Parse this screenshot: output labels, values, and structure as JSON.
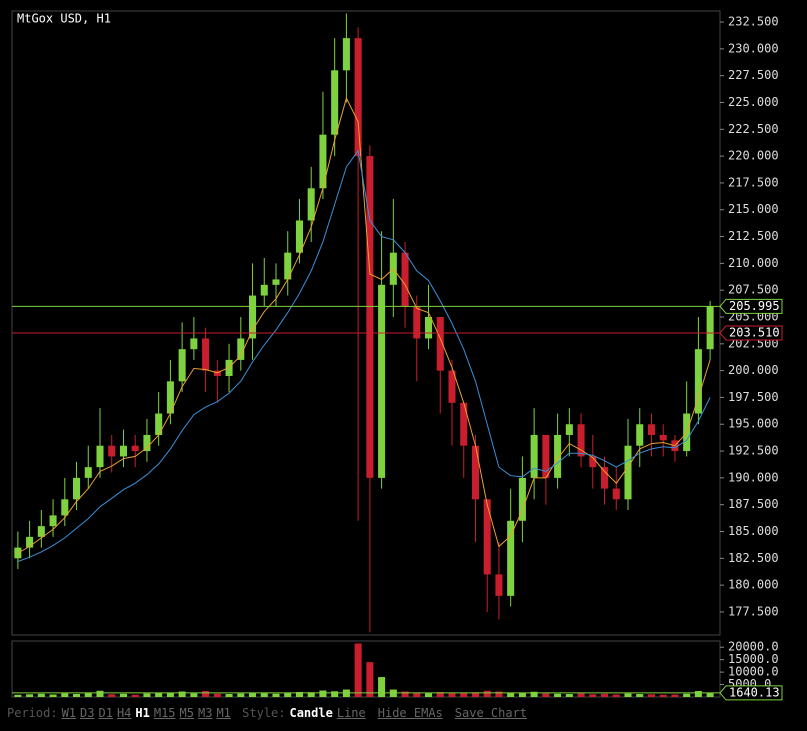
{
  "chart_data": {
    "type": "candlestick",
    "title": "MtGox USD, H1",
    "open": [
      182.5,
      183.5,
      184.5,
      185.5,
      186.5,
      188,
      190,
      191,
      193,
      192,
      193,
      192.5,
      194,
      196,
      199,
      202,
      203,
      200,
      199.5,
      201,
      203,
      207,
      208,
      208.5,
      211,
      214,
      217,
      222,
      228,
      231,
      220,
      190,
      208,
      211,
      206,
      203,
      205,
      200,
      197,
      193,
      188,
      181,
      179,
      186,
      190,
      194,
      190,
      194,
      195,
      192,
      191,
      189,
      188,
      193,
      195,
      194,
      193.5,
      192.5,
      196,
      202
    ],
    "high": [
      185,
      186,
      187,
      188,
      190,
      191.5,
      193,
      196.5,
      194,
      194.5,
      194,
      195.5,
      198,
      201,
      204.5,
      205,
      204,
      201,
      202.5,
      205,
      210,
      210.5,
      210,
      213,
      216,
      219,
      226,
      231,
      233.3,
      232,
      221,
      213,
      216,
      212,
      207,
      208,
      205,
      201,
      197,
      194,
      188,
      184,
      189,
      192,
      196.5,
      194,
      196,
      196.5,
      196,
      194,
      192,
      191,
      195.5,
      196.5,
      196,
      195,
      194,
      199,
      205,
      206.5
    ],
    "low": [
      181.5,
      182.5,
      183.5,
      184.5,
      185.5,
      187,
      189,
      190,
      190.5,
      191,
      191,
      191.5,
      193,
      195,
      198,
      201,
      198,
      197,
      198,
      200,
      201,
      206,
      206,
      207,
      210,
      212,
      216,
      220,
      225,
      186,
      175.6,
      189,
      205,
      204,
      199,
      202,
      196,
      193,
      190,
      184,
      177.5,
      176.8,
      178,
      184,
      188,
      187.5,
      189,
      192,
      191,
      189,
      187.5,
      187,
      187,
      191,
      192,
      192,
      191.5,
      192,
      195,
      201
    ],
    "close": [
      183.5,
      184.5,
      185.5,
      186.5,
      188,
      190,
      191,
      193,
      192,
      193,
      192.5,
      194,
      196,
      199,
      202,
      203,
      200,
      199.5,
      201,
      203,
      207,
      208,
      208.5,
      211,
      214,
      217,
      222,
      228,
      231,
      220,
      190,
      208,
      211,
      206,
      203,
      205,
      200,
      197,
      193,
      188,
      181,
      179,
      186,
      190,
      194,
      190,
      194,
      195,
      192,
      191,
      189,
      188,
      193,
      195,
      194,
      193.5,
      192.5,
      196,
      202,
      205.995
    ],
    "volume": [
      900,
      1100,
      1300,
      1000,
      1500,
      1200,
      1700,
      2500,
      1100,
      1300,
      900,
      1400,
      1600,
      1800,
      2200,
      1500,
      2400,
      1300,
      1200,
      1400,
      1800,
      1500,
      1300,
      1700,
      2000,
      1900,
      2600,
      2300,
      3000,
      21500,
      14000,
      8000,
      3000,
      2200,
      1800,
      1500,
      2000,
      1700,
      1600,
      1900,
      2500,
      2200,
      1800,
      1600,
      2100,
      1400,
      1300,
      1200,
      1500,
      1100,
      1300,
      1000,
      1400,
      1200,
      1100,
      900,
      1000,
      1300,
      2400,
      1640.13
    ],
    "ema": [
      {
        "color": "#e8a030",
        "values": [
          183,
          183.6,
          184.4,
          185.2,
          186.3,
          187.8,
          189,
          190.6,
          191.1,
          191.8,
          192,
          192.8,
          194,
          196,
          198.5,
          200.2,
          200.1,
          199.8,
          200.3,
          201.4,
          203.8,
          205.5,
          206.7,
          208.5,
          210.8,
          213.4,
          217,
          221.5,
          225.4,
          223.2,
          209,
          208.5,
          209.5,
          208,
          205.8,
          205.4,
          203,
          200.3,
          197,
          193,
          187.5,
          183.6,
          184.6,
          187,
          190,
          190,
          191.8,
          193.2,
          192.6,
          191.9,
          190.6,
          189.5,
          191,
          192.7,
          193.2,
          193.3,
          193,
          194.2,
          197.5,
          201
        ]
      },
      {
        "color": "#3a8fd8",
        "values": [
          182.2,
          182.6,
          183.1,
          183.7,
          184.4,
          185.3,
          186.2,
          187.3,
          188.1,
          188.9,
          189.5,
          190.3,
          191.3,
          192.7,
          194.4,
          195.9,
          196.6,
          197.1,
          197.9,
          199,
          200.8,
          202.4,
          203.8,
          205.4,
          207.2,
          209.3,
          212,
          215.5,
          219,
          220.5,
          214,
          212.5,
          212.2,
          211,
          209.3,
          208.4,
          206.5,
          204.4,
          202,
          199,
          195,
          191,
          190.2,
          190.1,
          190.9,
          190.6,
          191.4,
          192.3,
          192.3,
          192.1,
          191.6,
          191,
          191.6,
          192.3,
          192.7,
          192.9,
          192.8,
          193.5,
          195.3,
          197.5
        ]
      }
    ],
    "up_color": "#7fd23f",
    "down_color": "#c81e2d",
    "ylim": [
      175.35,
      233.53
    ],
    "yticks": [
      {
        "value": 177.5,
        "label": "177.500"
      },
      {
        "value": 180,
        "label": "180.000"
      },
      {
        "value": 182.5,
        "label": "182.500"
      },
      {
        "value": 185,
        "label": "185.000"
      },
      {
        "value": 187.5,
        "label": "187.500"
      },
      {
        "value": 190,
        "label": "190.000"
      },
      {
        "value": 192.5,
        "label": "192.500"
      },
      {
        "value": 195,
        "label": "195.000"
      },
      {
        "value": 197.5,
        "label": "197.500"
      },
      {
        "value": 200,
        "label": "200.000"
      },
      {
        "value": 202.5,
        "label": "202.500"
      },
      {
        "value": 205,
        "label": "205.000"
      },
      {
        "value": 207.5,
        "label": "207.500"
      },
      {
        "value": 210,
        "label": "210.000"
      },
      {
        "value": 212.5,
        "label": "212.500"
      },
      {
        "value": 215,
        "label": "215.000"
      },
      {
        "value": 217.5,
        "label": "217.500"
      },
      {
        "value": 220,
        "label": "220.000"
      },
      {
        "value": 222.5,
        "label": "222.500"
      },
      {
        "value": 225,
        "label": "225.000"
      },
      {
        "value": 227.5,
        "label": "227.500"
      },
      {
        "value": 230,
        "label": "230.000"
      },
      {
        "value": 232.5,
        "label": "232.500"
      }
    ],
    "price_lines": [
      {
        "value": 205.995,
        "label": "205.995",
        "color": "#7fd23f"
      },
      {
        "value": 203.51,
        "label": "203.510",
        "color": "#c81e2d"
      }
    ],
    "volume_ylim": [
      0,
      22500
    ],
    "volume_yticks": [
      {
        "value": 5000,
        "label": "5000.0"
      },
      {
        "value": 10000,
        "label": "10000.0"
      },
      {
        "value": 15000,
        "label": "15000.0"
      },
      {
        "value": 20000,
        "label": "20000.0"
      }
    ]
  },
  "ui": {
    "period_label": "Period:",
    "periods": [
      "W1",
      "D3",
      "D1",
      "H4",
      "H1",
      "M15",
      "M5",
      "M3",
      "M1"
    ],
    "active_period": "H1",
    "style_label": "Style:",
    "styles": [
      "Candle",
      "Line"
    ],
    "active_style": "Candle",
    "actions": [
      "Hide EMAs",
      "Save Chart"
    ]
  }
}
